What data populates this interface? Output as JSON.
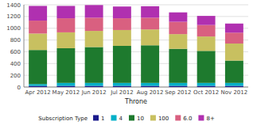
{
  "chart_data": {
    "type": "bar",
    "stacked": true,
    "grid": true,
    "legend": "bottom",
    "xlabel": "Throne",
    "legend_title": "Subscription Type",
    "categories": [
      "Apr 2012",
      "May 2012",
      "Jun 2012",
      "Jul 2012",
      "Aug 2012",
      "Sep 2012",
      "Oct 2012",
      "Nov 2012"
    ],
    "series": [
      {
        "name": "1",
        "color": "#1a1a8c",
        "values": [
          20,
          20,
          20,
          20,
          20,
          20,
          20,
          20
        ]
      },
      {
        "name": "4",
        "color": "#00b0c8",
        "values": [
          30,
          50,
          50,
          50,
          50,
          50,
          50,
          50
        ]
      },
      {
        "name": "10",
        "color": "#1e7a2e",
        "values": [
          580,
          590,
          610,
          630,
          640,
          580,
          545,
          380
        ]
      },
      {
        "name": "100",
        "color": "#c8c060",
        "values": [
          280,
          270,
          275,
          270,
          270,
          250,
          245,
          290
        ]
      },
      {
        "name": "6.0",
        "color": "#d96080",
        "values": [
          220,
          240,
          225,
          200,
          200,
          210,
          195,
          185
        ]
      },
      {
        "name": "8+",
        "color": "#b030b0",
        "values": [
          250,
          210,
          215,
          200,
          195,
          160,
          155,
          155
        ]
      }
    ],
    "ylim": [
      0,
      1400
    ],
    "yticks": [
      0,
      200,
      400,
      600,
      800,
      1000,
      1200,
      1400
    ]
  }
}
